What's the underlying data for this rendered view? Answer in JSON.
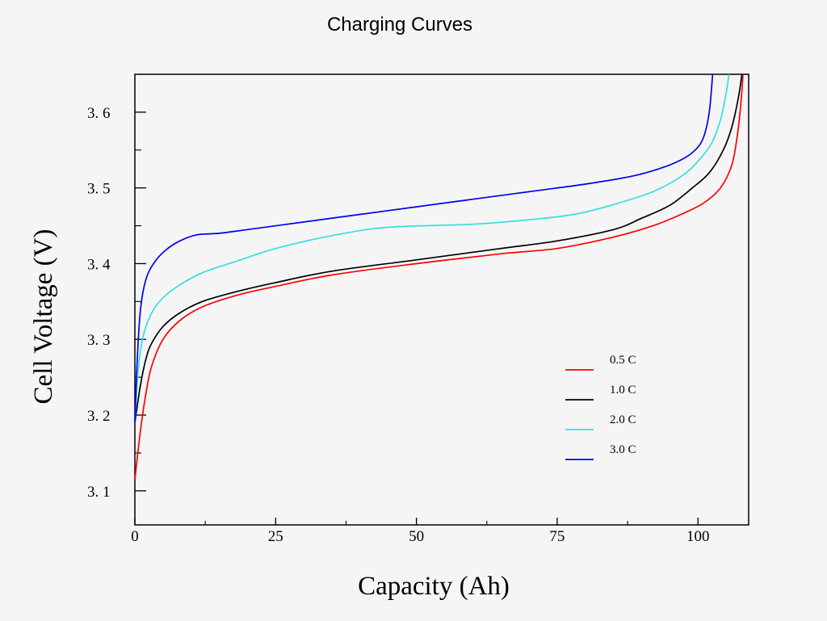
{
  "chart_data": {
    "type": "line",
    "title": "Charging Curves",
    "xlabel": "Capacity (Ah)",
    "ylabel": "Cell Voltage (V)",
    "xlim": [
      0,
      109
    ],
    "ylim": [
      3.055,
      3.65
    ],
    "x_ticks": [
      0,
      25,
      50,
      75,
      100
    ],
    "x_tick_labels": [
      "0",
      "25",
      "50",
      "75",
      "100"
    ],
    "y_ticks": [
      3.1,
      3.2,
      3.3,
      3.4,
      3.5,
      3.6
    ],
    "y_tick_labels": [
      "3. 1",
      "3. 2",
      "3. 3",
      "3. 4",
      "3. 5",
      "3. 6"
    ],
    "grid": false,
    "legend_position": "lower-right",
    "series": [
      {
        "name": "0.5 C",
        "color": "#ff0000",
        "points": [
          [
            0,
            3.115
          ],
          [
            1,
            3.18
          ],
          [
            2,
            3.23
          ],
          [
            3,
            3.265
          ],
          [
            5,
            3.3
          ],
          [
            8,
            3.325
          ],
          [
            12,
            3.343
          ],
          [
            18,
            3.358
          ],
          [
            25,
            3.37
          ],
          [
            35,
            3.385
          ],
          [
            50,
            3.4
          ],
          [
            65,
            3.413
          ],
          [
            75,
            3.42
          ],
          [
            85,
            3.435
          ],
          [
            92,
            3.45
          ],
          [
            97,
            3.465
          ],
          [
            101,
            3.48
          ],
          [
            104,
            3.5
          ],
          [
            106,
            3.53
          ],
          [
            107,
            3.57
          ],
          [
            107.6,
            3.61
          ],
          [
            108,
            3.65
          ]
        ]
      },
      {
        "name": "1.0 C",
        "color": "#000000",
        "points": [
          [
            0,
            3.19
          ],
          [
            1,
            3.24
          ],
          [
            2,
            3.275
          ],
          [
            3,
            3.295
          ],
          [
            5,
            3.317
          ],
          [
            8,
            3.335
          ],
          [
            12,
            3.35
          ],
          [
            18,
            3.363
          ],
          [
            25,
            3.375
          ],
          [
            35,
            3.39
          ],
          [
            50,
            3.405
          ],
          [
            65,
            3.42
          ],
          [
            75,
            3.43
          ],
          [
            85,
            3.445
          ],
          [
            90,
            3.46
          ],
          [
            95,
            3.477
          ],
          [
            99,
            3.5
          ],
          [
            102,
            3.52
          ],
          [
            104.5,
            3.55
          ],
          [
            106,
            3.58
          ],
          [
            107.2,
            3.62
          ],
          [
            107.8,
            3.65
          ]
        ]
      },
      {
        "name": "2.0 C",
        "color": "#33e0e0",
        "points": [
          [
            0,
            3.19
          ],
          [
            0.6,
            3.26
          ],
          [
            1.5,
            3.305
          ],
          [
            3,
            3.335
          ],
          [
            5,
            3.355
          ],
          [
            8,
            3.372
          ],
          [
            12,
            3.388
          ],
          [
            18,
            3.403
          ],
          [
            25,
            3.42
          ],
          [
            35,
            3.437
          ],
          [
            45,
            3.448
          ],
          [
            60,
            3.452
          ],
          [
            70,
            3.458
          ],
          [
            78,
            3.465
          ],
          [
            85,
            3.478
          ],
          [
            92,
            3.495
          ],
          [
            97,
            3.515
          ],
          [
            100,
            3.535
          ],
          [
            102.5,
            3.56
          ],
          [
            104,
            3.59
          ],
          [
            105,
            3.625
          ],
          [
            105.5,
            3.65
          ]
        ]
      },
      {
        "name": "3.0 C",
        "color": "#0000ee",
        "points": [
          [
            0,
            3.19
          ],
          [
            0.4,
            3.27
          ],
          [
            1,
            3.34
          ],
          [
            2,
            3.38
          ],
          [
            3.5,
            3.402
          ],
          [
            5.5,
            3.418
          ],
          [
            8,
            3.43
          ],
          [
            11,
            3.438
          ],
          [
            15,
            3.44
          ],
          [
            20,
            3.445
          ],
          [
            30,
            3.455
          ],
          [
            40,
            3.465
          ],
          [
            50,
            3.475
          ],
          [
            60,
            3.485
          ],
          [
            70,
            3.495
          ],
          [
            80,
            3.505
          ],
          [
            88,
            3.515
          ],
          [
            93,
            3.525
          ],
          [
            97,
            3.537
          ],
          [
            99.5,
            3.55
          ],
          [
            101,
            3.567
          ],
          [
            102,
            3.6
          ],
          [
            102.6,
            3.65
          ]
        ]
      }
    ]
  }
}
